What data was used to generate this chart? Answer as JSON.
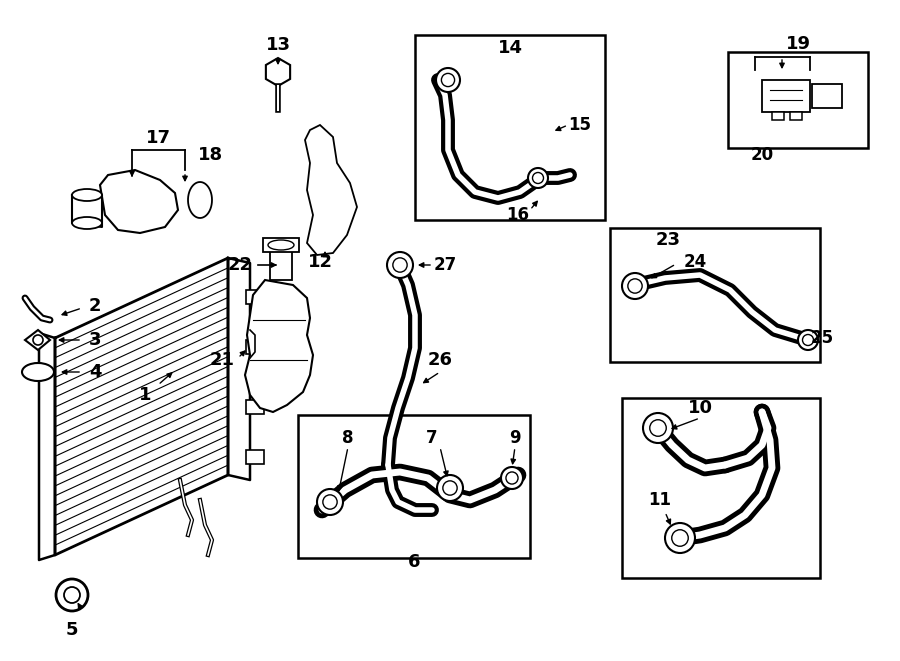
{
  "bg_color": "#ffffff",
  "line_color": "#000000",
  "text_color": "#000000",
  "fig_width": 9.0,
  "fig_height": 6.61,
  "dpi": 100
}
